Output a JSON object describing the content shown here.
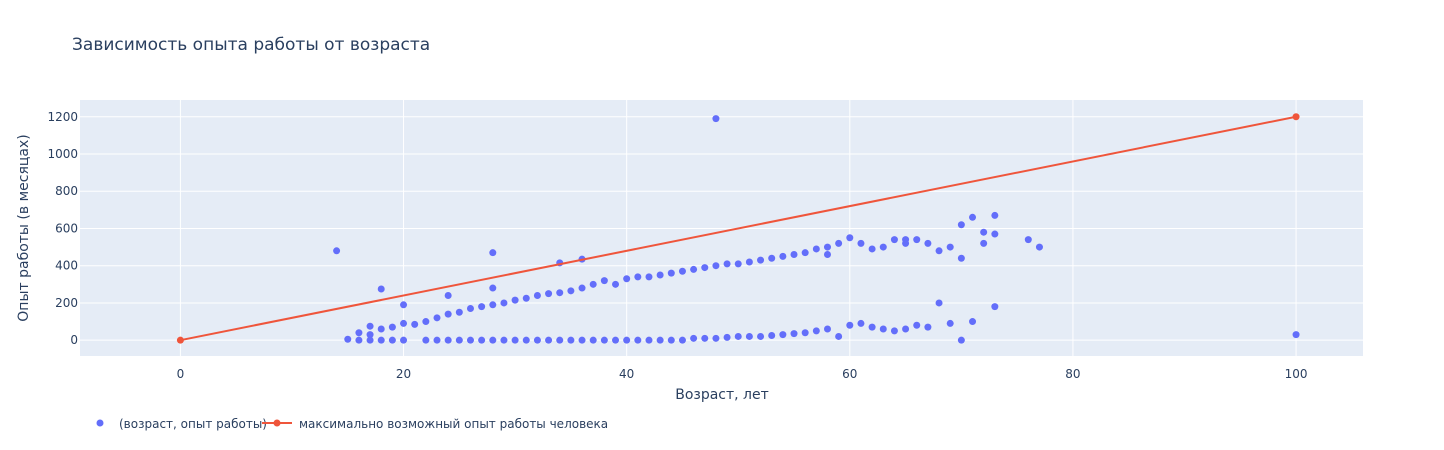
{
  "chart_data": {
    "type": "scatter",
    "title": "Зависимость опыта работы от возраста",
    "xlabel": "Возраст, лет",
    "ylabel": "Опыт работы (в месяцах)",
    "xlim": [
      -9,
      106
    ],
    "ylim": [
      -85,
      1290
    ],
    "xticks": [
      0,
      20,
      40,
      60,
      80,
      100
    ],
    "yticks": [
      0,
      200,
      400,
      600,
      800,
      1000,
      1200
    ],
    "grid": true,
    "legend_position": "bottom-left",
    "colors": {
      "scatter": "#636efa",
      "line": "#ef553b",
      "plot_bg": "#e5ecf6"
    },
    "series": [
      {
        "name": "(возраст, опыт работы)",
        "mode": "markers",
        "x": [
          15,
          16,
          16,
          17,
          17,
          17,
          18,
          18,
          19,
          19,
          20,
          20,
          21,
          22,
          22,
          23,
          23,
          24,
          24,
          25,
          25,
          26,
          26,
          27,
          27,
          28,
          28,
          29,
          29,
          30,
          30,
          31,
          31,
          32,
          32,
          33,
          33,
          34,
          34,
          35,
          35,
          36,
          36,
          37,
          37,
          38,
          38,
          39,
          39,
          40,
          40,
          41,
          41,
          42,
          42,
          43,
          43,
          44,
          44,
          45,
          45,
          46,
          46,
          47,
          47,
          48,
          48,
          49,
          49,
          50,
          50,
          51,
          51,
          52,
          52,
          53,
          53,
          54,
          54,
          55,
          55,
          56,
          56,
          57,
          57,
          58,
          58,
          59,
          59,
          60,
          60,
          61,
          61,
          62,
          62,
          63,
          63,
          64,
          64,
          65,
          65,
          66,
          66,
          67,
          67,
          68,
          68,
          69,
          69,
          70,
          70,
          71,
          71,
          72,
          72,
          73,
          73,
          76,
          77,
          14,
          18,
          20,
          24,
          28,
          28,
          34,
          36,
          48,
          100,
          70,
          73,
          58,
          65
        ],
        "y": [
          5,
          0,
          40,
          0,
          75,
          30,
          0,
          60,
          0,
          70,
          0,
          90,
          85,
          0,
          100,
          0,
          120,
          0,
          140,
          0,
          150,
          0,
          170,
          0,
          180,
          0,
          190,
          0,
          200,
          0,
          215,
          0,
          225,
          0,
          240,
          0,
          250,
          0,
          255,
          0,
          265,
          0,
          280,
          0,
          300,
          0,
          320,
          0,
          300,
          0,
          330,
          0,
          340,
          0,
          340,
          0,
          350,
          0,
          360,
          0,
          370,
          10,
          380,
          10,
          390,
          10,
          400,
          15,
          410,
          20,
          410,
          20,
          420,
          20,
          430,
          25,
          440,
          30,
          450,
          35,
          460,
          40,
          470,
          50,
          490,
          60,
          500,
          20,
          520,
          80,
          550,
          90,
          520,
          70,
          490,
          60,
          500,
          50,
          540,
          60,
          520,
          80,
          540,
          70,
          520,
          200,
          480,
          90,
          500,
          0,
          440,
          100,
          660,
          520,
          580,
          180,
          670,
          540,
          500,
          480,
          275,
          190,
          240,
          280,
          470,
          415,
          435,
          1190,
          30,
          620,
          570,
          460,
          540
        ]
      },
      {
        "name": "максимально возможный опыт работы человека",
        "mode": "lines+markers",
        "x": [
          0,
          100
        ],
        "y": [
          0,
          1200
        ]
      }
    ]
  }
}
